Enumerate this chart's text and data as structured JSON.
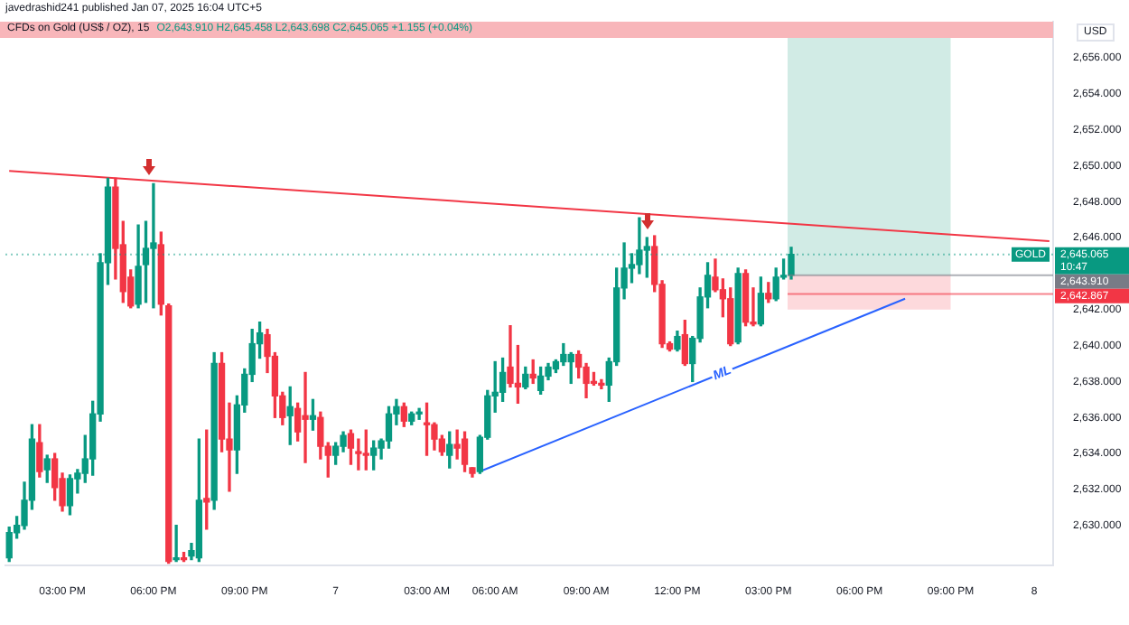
{
  "chart_data": {
    "type": "candlestick",
    "title": "CFDs on Gold (US$ / OZ), 15",
    "subtitle": "O2,643.910 H2,645.458 L2,643.698 C2,645.065 +1.155 (+0.04%)",
    "ylabel": "USD",
    "categories": [
      null,
      null,
      null,
      null,
      null,
      null,
      null,
      "03:00 PM",
      null,
      null,
      null,
      null,
      null,
      null,
      null,
      null,
      null,
      null,
      null,
      "06:00 PM",
      null,
      null,
      null,
      null,
      null,
      null,
      null,
      null,
      null,
      null,
      null,
      "09:00 PM",
      null,
      null,
      null,
      null,
      null,
      null,
      null,
      null,
      null,
      null,
      null,
      "7",
      null,
      null,
      null,
      null,
      null,
      null,
      null,
      null,
      null,
      null,
      null,
      "03:00 AM",
      null,
      null,
      null,
      null,
      null,
      null,
      null,
      null,
      "06:00 AM",
      null,
      null,
      null,
      null,
      null,
      null,
      null,
      null,
      null,
      null,
      null,
      "09:00 AM",
      null,
      null,
      null,
      null,
      null,
      null,
      null,
      null,
      null,
      null,
      null,
      "12:00 PM",
      null,
      null,
      null,
      null,
      null,
      null,
      null,
      null,
      null,
      null,
      null,
      "03:00 PM",
      null,
      null,
      null,
      null,
      null,
      null,
      null,
      null,
      null,
      null,
      null,
      "06:00 PM",
      null,
      null,
      null,
      null,
      null,
      null,
      null,
      null,
      null,
      null,
      null,
      "09:00 PM",
      null,
      null,
      null,
      null,
      null,
      null,
      null,
      null,
      null,
      null,
      "8",
      null,
      null
    ],
    "ohlc": [
      [
        2628.2,
        2629.9,
        2628.0,
        2629.6
      ],
      [
        2629.6,
        2630.5,
        2629.3,
        2630.0
      ],
      [
        2630.0,
        2632.4,
        2629.8,
        2631.4
      ],
      [
        2631.4,
        2635.6,
        2630.9,
        2634.8
      ],
      [
        2634.6,
        2635.6,
        2632.7,
        2633.0
      ],
      [
        2633.1,
        2633.9,
        2632.4,
        2633.7
      ],
      [
        2633.7,
        2634.0,
        2631.4,
        2632.1
      ],
      [
        2632.6,
        2632.9,
        2630.8,
        2631.1
      ],
      [
        2631.1,
        2632.8,
        2630.6,
        2632.6
      ],
      [
        2632.6,
        2633.1,
        2631.8,
        2632.9
      ],
      [
        2632.9,
        2635.0,
        2632.4,
        2633.7
      ],
      [
        2633.7,
        2636.9,
        2632.8,
        2636.2
      ],
      [
        2636.2,
        2645.1,
        2635.8,
        2644.6
      ],
      [
        2644.6,
        2649.3,
        2643.4,
        2648.8
      ],
      [
        2648.8,
        2649.3,
        2643.7,
        2645.4
      ],
      [
        2645.6,
        2646.9,
        2642.4,
        2643.0
      ],
      [
        2643.8,
        2644.2,
        2642.1,
        2642.2
      ],
      [
        2642.3,
        2646.7,
        2642.1,
        2644.4
      ],
      [
        2644.5,
        2646.9,
        2642.4,
        2645.4
      ],
      [
        2645.4,
        2649.0,
        2642.1,
        2645.7
      ],
      [
        2645.6,
        2646.3,
        2641.7,
        2642.3
      ],
      [
        2642.2,
        2642.3,
        2627.9,
        2628.0
      ],
      [
        2628.1,
        2630.0,
        2628.0,
        2628.2
      ],
      [
        2628.2,
        2628.5,
        2628.0,
        2628.1
      ],
      [
        2628.3,
        2629.0,
        2628.1,
        2628.6
      ],
      [
        2628.2,
        2634.8,
        2628.0,
        2631.4
      ],
      [
        2631.5,
        2635.3,
        2629.8,
        2631.3
      ],
      [
        2631.4,
        2639.6,
        2630.9,
        2639.0
      ],
      [
        2639.0,
        2639.6,
        2634.1,
        2634.8
      ],
      [
        2634.8,
        2636.8,
        2631.9,
        2634.2
      ],
      [
        2634.2,
        2637.2,
        2632.9,
        2636.7
      ],
      [
        2636.7,
        2638.7,
        2636.3,
        2638.4
      ],
      [
        2638.4,
        2640.9,
        2638.0,
        2640.1
      ],
      [
        2640.1,
        2641.3,
        2639.3,
        2640.7
      ],
      [
        2640.6,
        2640.9,
        2638.5,
        2639.4
      ],
      [
        2639.4,
        2639.6,
        2636.0,
        2637.2
      ],
      [
        2637.2,
        2637.4,
        2635.6,
        2636.0
      ],
      [
        2636.1,
        2637.7,
        2634.5,
        2636.6
      ],
      [
        2636.5,
        2636.8,
        2634.7,
        2635.2
      ],
      [
        2636.1,
        2638.5,
        2633.5,
        2635.9
      ],
      [
        2635.9,
        2637.0,
        2635.3,
        2636.1
      ],
      [
        2636.0,
        2636.3,
        2633.7,
        2634.4
      ],
      [
        2634.4,
        2634.6,
        2632.7,
        2633.9
      ],
      [
        2633.9,
        2634.6,
        2633.4,
        2634.4
      ],
      [
        2634.4,
        2635.2,
        2634.1,
        2635.0
      ],
      [
        2635.1,
        2635.3,
        2633.4,
        2634.3
      ],
      [
        2634.1,
        2634.8,
        2633.1,
        2634.0
      ],
      [
        2634.0,
        2635.3,
        2633.1,
        2633.9
      ],
      [
        2633.9,
        2634.7,
        2633.1,
        2634.3
      ],
      [
        2634.3,
        2634.8,
        2633.7,
        2634.7
      ],
      [
        2634.7,
        2636.6,
        2634.3,
        2636.2
      ],
      [
        2636.2,
        2637.0,
        2635.6,
        2636.6
      ],
      [
        2636.6,
        2636.8,
        2635.5,
        2635.8
      ],
      [
        2635.8,
        2636.3,
        2635.6,
        2636.2
      ],
      [
        2636.2,
        2636.5,
        2635.9,
        2636.3
      ],
      [
        2635.7,
        2636.8,
        2633.9,
        2635.6
      ],
      [
        2635.6,
        2635.7,
        2634.2,
        2634.8
      ],
      [
        2634.8,
        2635.0,
        2633.9,
        2634.1
      ],
      [
        2633.9,
        2635.2,
        2633.2,
        2634.5
      ],
      [
        2634.5,
        2635.3,
        2633.7,
        2634.3
      ],
      [
        2634.8,
        2635.2,
        2633.0,
        2633.4
      ],
      [
        2633.2,
        2633.2,
        2632.7,
        2632.9
      ],
      [
        2633.0,
        2635.0,
        2632.9,
        2634.9
      ],
      [
        2634.9,
        2637.5,
        2634.8,
        2637.2
      ],
      [
        2637.2,
        2639.1,
        2636.3,
        2637.4
      ],
      [
        2637.4,
        2639.3,
        2636.9,
        2638.5
      ],
      [
        2638.8,
        2641.1,
        2637.7,
        2637.9
      ],
      [
        2637.9,
        2640.0,
        2636.8,
        2637.7
      ],
      [
        2637.7,
        2638.8,
        2637.6,
        2638.4
      ],
      [
        2638.4,
        2639.2,
        2637.9,
        2638.2
      ],
      [
        2637.5,
        2638.8,
        2637.3,
        2638.3
      ],
      [
        2638.3,
        2639.0,
        2638.1,
        2638.8
      ],
      [
        2638.7,
        2639.2,
        2638.5,
        2639.1
      ],
      [
        2639.1,
        2640.1,
        2638.9,
        2639.5
      ],
      [
        2639.1,
        2639.6,
        2637.9,
        2639.5
      ],
      [
        2639.5,
        2639.7,
        2638.2,
        2638.8
      ],
      [
        2638.8,
        2639.0,
        2637.1,
        2637.9
      ],
      [
        2638.0,
        2638.5,
        2637.8,
        2637.9
      ],
      [
        2637.9,
        2638.1,
        2637.6,
        2637.8
      ],
      [
        2637.8,
        2639.3,
        2636.9,
        2639.1
      ],
      [
        2639.1,
        2644.3,
        2638.9,
        2643.2
      ],
      [
        2643.2,
        2645.7,
        2642.6,
        2644.3
      ],
      [
        2644.3,
        2645.1,
        2643.5,
        2644.5
      ],
      [
        2644.5,
        2647.1,
        2644.0,
        2645.3
      ],
      [
        2645.3,
        2646.0,
        2643.8,
        2645.5
      ],
      [
        2645.5,
        2646.1,
        2643.0,
        2643.4
      ],
      [
        2643.4,
        2643.6,
        2639.9,
        2640.1
      ],
      [
        2640.1,
        2640.2,
        2639.7,
        2639.8
      ],
      [
        2639.8,
        2640.8,
        2639.7,
        2640.5
      ],
      [
        2640.6,
        2641.4,
        2638.9,
        2639.0
      ],
      [
        2639.0,
        2640.5,
        2638.0,
        2640.4
      ],
      [
        2640.4,
        2643.2,
        2640.2,
        2642.7
      ],
      [
        2642.7,
        2644.6,
        2642.1,
        2643.9
      ],
      [
        2643.8,
        2644.8,
        2643.0,
        2643.1
      ],
      [
        2643.1,
        2643.7,
        2641.6,
        2642.6
      ],
      [
        2642.6,
        2643.2,
        2640.0,
        2640.1
      ],
      [
        2640.2,
        2644.3,
        2640.1,
        2644.0
      ],
      [
        2644.0,
        2644.2,
        2641.1,
        2641.3
      ],
      [
        2641.3,
        2643.2,
        2641.1,
        2641.2
      ],
      [
        2641.2,
        2643.8,
        2641.1,
        2642.9
      ],
      [
        2642.9,
        2643.5,
        2642.4,
        2642.6
      ],
      [
        2642.6,
        2644.3,
        2642.5,
        2643.8
      ],
      [
        2643.8,
        2644.8,
        2643.7,
        2643.9
      ],
      [
        2643.91,
        2645.458,
        2643.698,
        2645.065
      ],
      null,
      null,
      null,
      null,
      null,
      null,
      null,
      null,
      null,
      null,
      null,
      null,
      null,
      null,
      null,
      null,
      null,
      null,
      null,
      null,
      null,
      null,
      null,
      null,
      null,
      null,
      null,
      null,
      null,
      null,
      null,
      null,
      null,
      null
    ],
    "series": [
      {
        "type": "line",
        "color": "#f23645",
        "values": [
          2649.7,
          null,
          null,
          null,
          null,
          null,
          null,
          null,
          null,
          null,
          null,
          null,
          null,
          null,
          null,
          null,
          null,
          null,
          null,
          null,
          null,
          null,
          null,
          null,
          null,
          null,
          null,
          null,
          null,
          null,
          null,
          null,
          null,
          null,
          null,
          null,
          null,
          null,
          null,
          null,
          null,
          null,
          null,
          null,
          null,
          null,
          null,
          null,
          null,
          null,
          null,
          null,
          null,
          null,
          null,
          null,
          null,
          null,
          null,
          null,
          null,
          null,
          null,
          null,
          null,
          null,
          null,
          null,
          null,
          null,
          null,
          null,
          null,
          null,
          null,
          null,
          null,
          null,
          null,
          null,
          null,
          null,
          null,
          null,
          null,
          null,
          null,
          null,
          null,
          null,
          null,
          null,
          null,
          null,
          null,
          null,
          null,
          null,
          null,
          null,
          null,
          null,
          null,
          null,
          null,
          null,
          null,
          null,
          null,
          null,
          null,
          null,
          null,
          null,
          null,
          null,
          null,
          null,
          null,
          null,
          null,
          null,
          null,
          null,
          null,
          null,
          null,
          null,
          null,
          null,
          null,
          null,
          null,
          null,
          null,
          null,
          null,
          2645.8
        ]
      },
      {
        "type": "line",
        "name": "ML",
        "color": "#2962ff",
        "values": [
          null,
          null,
          null,
          null,
          null,
          null,
          null,
          null,
          null,
          null,
          null,
          null,
          null,
          null,
          null,
          null,
          null,
          null,
          null,
          null,
          null,
          null,
          null,
          null,
          null,
          null,
          null,
          null,
          null,
          null,
          null,
          null,
          null,
          null,
          null,
          null,
          null,
          null,
          null,
          null,
          null,
          null,
          null,
          null,
          null,
          null,
          null,
          null,
          null,
          null,
          null,
          null,
          null,
          null,
          null,
          null,
          null,
          null,
          null,
          null,
          null,
          null,
          2633.0,
          null,
          null,
          null,
          null,
          null,
          null,
          null,
          null,
          null,
          null,
          null,
          null,
          null,
          null,
          null,
          null,
          null,
          null,
          null,
          null,
          null,
          null,
          null,
          null,
          null,
          null,
          null,
          null,
          null,
          null,
          null,
          null,
          null,
          null,
          null,
          null,
          null,
          null,
          null,
          null,
          null,
          null,
          null,
          null,
          null,
          null,
          null,
          null,
          null,
          null,
          null,
          null,
          null,
          null,
          null,
          2642.6,
          null,
          null,
          null,
          null,
          null,
          null,
          null,
          null,
          null,
          null,
          null,
          null,
          null,
          null,
          null,
          null,
          null,
          null,
          null
        ]
      }
    ],
    "ylim": [
      2627.8,
      2658
    ],
    "yticks": [
      {
        "value": 2630,
        "label": "2,630.000"
      },
      {
        "value": 2632,
        "label": "2,632.000"
      },
      {
        "value": 2634,
        "label": "2,634.000"
      },
      {
        "value": 2636,
        "label": "2,636.000"
      },
      {
        "value": 2638,
        "label": "2,638.000"
      },
      {
        "value": 2640,
        "label": "2,640.000"
      },
      {
        "value": 2642,
        "label": "2,642.000"
      },
      {
        "value": 2646,
        "label": "2,646.000"
      },
      {
        "value": 2648,
        "label": "2,648.000"
      },
      {
        "value": 2650,
        "label": "2,650.000"
      },
      {
        "value": 2652,
        "label": "2,652.000"
      },
      {
        "value": 2654,
        "label": "2,654.000"
      },
      {
        "value": 2656,
        "label": "2,656.000"
      }
    ],
    "ref_lines": [
      {
        "axis": "y",
        "value": 2645.065,
        "label": "2,645.065\n10:47",
        "color": "#089981",
        "line_style": "dotted"
      },
      {
        "axis": "y",
        "value": 2643.91,
        "label": "2,643.910",
        "color": "#787b86"
      },
      {
        "axis": "y",
        "value": 2642.867,
        "label": "2,642.867",
        "color": "#f23645"
      }
    ],
    "bands": [
      {
        "axis": "y",
        "from": 2643.91,
        "to": 2657.8,
        "color": "#d1ebe5"
      },
      {
        "axis": "y",
        "from": 2642.0,
        "to": 2643.91,
        "color": "#fdd9dc"
      }
    ],
    "annotations": [
      "javedrashid241 published Jan 07, 2025 16:04 UTC+5",
      {
        "text": "GOLD",
        "y": 2645.065
      }
    ],
    "legend": false
  }
}
